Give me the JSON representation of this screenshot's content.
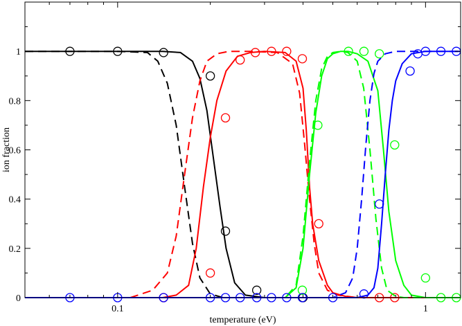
{
  "chart_data": {
    "type": "line",
    "xlabel": "temperature (eV)",
    "ylabel": "ion fraction",
    "x_scale": "log",
    "xlim": [
      0.05,
      1.3
    ],
    "ylim": [
      0,
      1.2
    ],
    "x_tick_labels": [
      {
        "value": 0.1,
        "label": "0.1"
      },
      {
        "value": 1,
        "label": "1"
      }
    ],
    "y_ticks": [
      0,
      0.2,
      0.4,
      0.6,
      0.8,
      1.0
    ],
    "y_tick_labels": [
      "0",
      "0.2",
      "0.4",
      "0.6",
      "0.8",
      "1"
    ],
    "grid": false,
    "series": [
      {
        "color": "#000000",
        "style": "solid",
        "x": [
          0.05,
          0.1,
          0.14,
          0.16,
          0.175,
          0.185,
          0.195,
          0.205,
          0.215,
          0.225,
          0.24,
          0.26,
          0.3
        ],
        "y": [
          1.0,
          1.0,
          1.0,
          0.995,
          0.96,
          0.89,
          0.76,
          0.56,
          0.37,
          0.2,
          0.06,
          0.01,
          0.0
        ]
      },
      {
        "color": "#000000",
        "style": "dashed",
        "x": [
          0.05,
          0.1,
          0.125,
          0.135,
          0.145,
          0.155,
          0.165,
          0.175,
          0.185,
          0.2,
          0.22,
          0.26
        ],
        "y": [
          1.0,
          1.0,
          0.995,
          0.96,
          0.87,
          0.7,
          0.45,
          0.22,
          0.08,
          0.015,
          0.0,
          0.0
        ]
      },
      {
        "color": "#000000",
        "style": "markers",
        "x": [
          0.07,
          0.1,
          0.141,
          0.2,
          0.224,
          0.283,
          0.4
        ],
        "y": [
          1.0,
          1.0,
          0.995,
          0.9,
          0.27,
          0.03,
          0.0
        ]
      },
      {
        "color": "#ff0000",
        "style": "solid",
        "x": [
          0.05,
          0.14,
          0.155,
          0.17,
          0.18,
          0.19,
          0.2,
          0.21,
          0.225,
          0.245,
          0.27,
          0.3,
          0.35,
          0.38,
          0.4,
          0.41,
          0.42,
          0.43,
          0.45,
          0.48,
          0.5,
          0.55,
          0.6,
          0.7,
          1.3
        ],
        "y": [
          0.0,
          0.0,
          0.01,
          0.05,
          0.2,
          0.45,
          0.65,
          0.8,
          0.92,
          0.98,
          0.995,
          1.0,
          0.995,
          0.96,
          0.85,
          0.68,
          0.45,
          0.3,
          0.15,
          0.05,
          0.02,
          0.005,
          0.0,
          0.0,
          0.0
        ]
      },
      {
        "color": "#ff0000",
        "style": "dashed",
        "x": [
          0.05,
          0.11,
          0.13,
          0.145,
          0.155,
          0.165,
          0.175,
          0.185,
          0.195,
          0.21,
          0.23,
          0.27,
          0.33,
          0.37,
          0.39,
          0.405,
          0.42,
          0.435,
          0.45,
          0.48,
          0.52,
          0.6,
          1.3
        ],
        "y": [
          0.0,
          0.0,
          0.03,
          0.1,
          0.25,
          0.5,
          0.73,
          0.88,
          0.96,
          0.99,
          1.0,
          1.0,
          0.995,
          0.95,
          0.83,
          0.62,
          0.4,
          0.22,
          0.1,
          0.03,
          0.01,
          0.0,
          0.0
        ]
      },
      {
        "color": "#ff0000",
        "style": "markers",
        "x": [
          0.141,
          0.2,
          0.224,
          0.25,
          0.28,
          0.316,
          0.354,
          0.398,
          0.45,
          0.708,
          0.794
        ],
        "y": [
          0.0,
          0.1,
          0.73,
          0.965,
          0.995,
          1.0,
          1.0,
          0.97,
          0.3,
          0.0,
          0.0
        ]
      },
      {
        "color": "#00ff00",
        "style": "solid",
        "x": [
          0.05,
          0.35,
          0.38,
          0.4,
          0.42,
          0.44,
          0.46,
          0.48,
          0.5,
          0.53,
          0.56,
          0.6,
          0.65,
          0.7,
          0.73,
          0.76,
          0.8,
          0.85,
          0.9,
          1.0,
          1.3
        ],
        "y": [
          0.0,
          0.0,
          0.04,
          0.2,
          0.5,
          0.75,
          0.9,
          0.97,
          0.99,
          1.0,
          1.0,
          0.99,
          0.96,
          0.84,
          0.6,
          0.35,
          0.15,
          0.05,
          0.01,
          0.0,
          0.0
        ]
      },
      {
        "color": "#00ff00",
        "style": "dashed",
        "x": [
          0.05,
          0.35,
          0.38,
          0.4,
          0.42,
          0.44,
          0.46,
          0.48,
          0.5,
          0.53,
          0.56,
          0.6,
          0.63,
          0.66,
          0.69,
          0.72,
          0.75,
          0.8,
          0.85,
          1.3
        ],
        "y": [
          0.0,
          0.0,
          0.05,
          0.25,
          0.55,
          0.8,
          0.93,
          0.98,
          0.995,
          1.0,
          0.995,
          0.96,
          0.85,
          0.6,
          0.32,
          0.12,
          0.03,
          0.005,
          0.0,
          0.0
        ]
      },
      {
        "color": "#00ff00",
        "style": "markers",
        "x": [
          0.398,
          0.447,
          0.562,
          0.631,
          0.708,
          0.794,
          1.0,
          1.122,
          1.259
        ],
        "y": [
          0.03,
          0.7,
          1.0,
          1.0,
          0.99,
          0.62,
          0.08,
          0.0,
          0.0
        ]
      },
      {
        "color": "#0000ff",
        "style": "solid",
        "x": [
          0.05,
          0.6,
          0.65,
          0.68,
          0.7,
          0.72,
          0.74,
          0.76,
          0.78,
          0.8,
          0.84,
          0.9,
          1.0,
          1.3
        ],
        "y": [
          0.0,
          0.0,
          0.01,
          0.04,
          0.12,
          0.3,
          0.5,
          0.68,
          0.8,
          0.88,
          0.95,
          0.99,
          1.0,
          1.0
        ]
      },
      {
        "color": "#0000ff",
        "style": "dashed",
        "x": [
          0.05,
          0.5,
          0.55,
          0.58,
          0.6,
          0.62,
          0.64,
          0.66,
          0.68,
          0.7,
          0.74,
          0.8,
          0.9,
          1.3
        ],
        "y": [
          0.0,
          0.0,
          0.02,
          0.08,
          0.2,
          0.4,
          0.62,
          0.8,
          0.91,
          0.96,
          0.99,
          1.0,
          1.0,
          1.0
        ]
      },
      {
        "color": "#0000ff",
        "style": "markers",
        "x": [
          0.07,
          0.1,
          0.141,
          0.2,
          0.224,
          0.25,
          0.283,
          0.316,
          0.354,
          0.398,
          0.5,
          0.631,
          0.708,
          0.891,
          0.944,
          1.0,
          1.122,
          1.259
        ],
        "y": [
          0.0,
          0.0,
          0.0,
          0.0,
          0.0,
          0.0,
          0.0,
          0.0,
          0.0,
          0.0,
          0.0,
          0.015,
          0.38,
          0.92,
          0.99,
          1.0,
          1.0,
          1.0
        ]
      }
    ]
  }
}
